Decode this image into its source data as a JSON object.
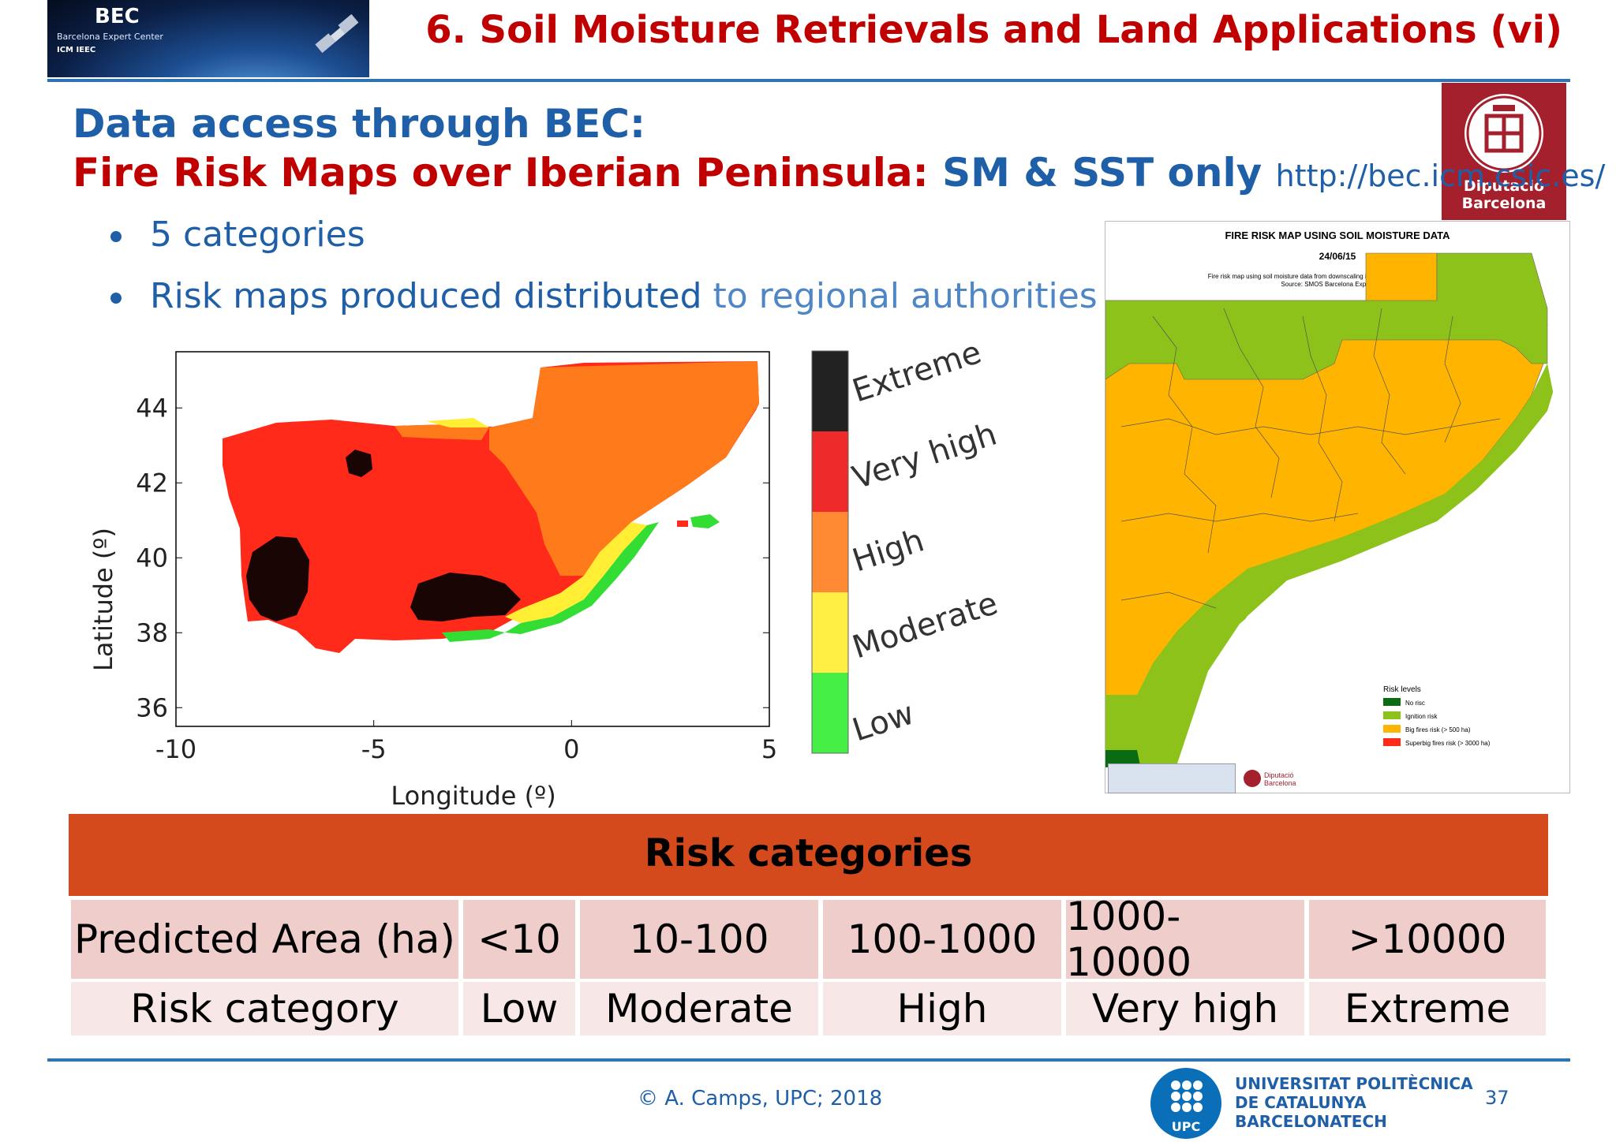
{
  "header": {
    "logo_text": "BEC",
    "logo_subtitle": "Barcelona Expert Center",
    "logo_partners": "ICM   IEEC",
    "slide_title": "6. Soil Moisture Retrievals and Land Applications (vi)"
  },
  "dip_logo": {
    "line1": "Diputació",
    "line2": "Barcelona"
  },
  "headings": {
    "line1": "Data access through BEC:",
    "line2_red": "Fire Risk Maps over Iberian Peninsula: ",
    "line2_blue": "SM & SST only",
    "url": "http://bec.icm.csic.es/"
  },
  "bullets": [
    {
      "text": "5 categories"
    },
    {
      "text_dark": "Risk maps produced distributed",
      "text_light": " to regional authorities"
    }
  ],
  "colorbar_labels": [
    "Extreme",
    "Very high",
    "High",
    "Moderate",
    "Low"
  ],
  "colors": {
    "extreme": "#111111",
    "very_high": "#ee2222",
    "high": "#ff7a1a",
    "moderate": "#ffee33",
    "low": "#33dd33",
    "accent_red": "#c00000",
    "accent_blue": "#1f5fa8",
    "table_header": "#d44a1c"
  },
  "chart_data": {
    "type": "heatmap",
    "xlabel": "Longitude (º)",
    "ylabel": "Latitude (º)",
    "xlim": [
      -10,
      5
    ],
    "ylim": [
      35.5,
      45.5
    ],
    "xticks": [
      "-10",
      "-5",
      "0",
      "5"
    ],
    "yticks": [
      "36",
      "38",
      "40",
      "42",
      "44"
    ],
    "categories": [
      "Low",
      "Moderate",
      "High",
      "Very high",
      "Extreme"
    ]
  },
  "catalonia_map": {
    "title": "FIRE RISK MAP USING SOIL MOISTURE DATA",
    "date": "24/06/15",
    "subtitle1": "Fire risk map using soil moisture data from downscaling images at 1 Km resolution of SMOS.",
    "subtitle2": "Source: SMOS Barcelona Expert Centre",
    "legend_title": "Risk levels",
    "legend": [
      {
        "label": "No risc",
        "color": "#0a6b12"
      },
      {
        "label": "Ignition risk",
        "color": "#8cc21a"
      },
      {
        "label": "Big fires risk (> 500 ha)",
        "color": "#ffb400"
      },
      {
        "label": "Superbig fires risk (> 3000 ha)",
        "color": "#ff2a1a"
      }
    ],
    "footer_logos": "SMOS   CSIC   Diputació Barcelona"
  },
  "table": {
    "title": "Risk categories",
    "rows": [
      [
        "Predicted Area (ha)",
        "<10",
        "10-100",
        "100-1000",
        "1000-10000",
        ">10000"
      ],
      [
        "Risk category",
        "Low",
        "Moderate",
        "High",
        "Very high",
        "Extreme"
      ]
    ]
  },
  "footer": {
    "copyright": "© A. Camps, UPC; 2018",
    "upc_line1": "UNIVERSITAT POLITÈCNICA",
    "upc_line2": "DE CATALUNYA",
    "upc_line3": "BARCELONATECH",
    "upc_short": "UPC",
    "page": "37"
  }
}
